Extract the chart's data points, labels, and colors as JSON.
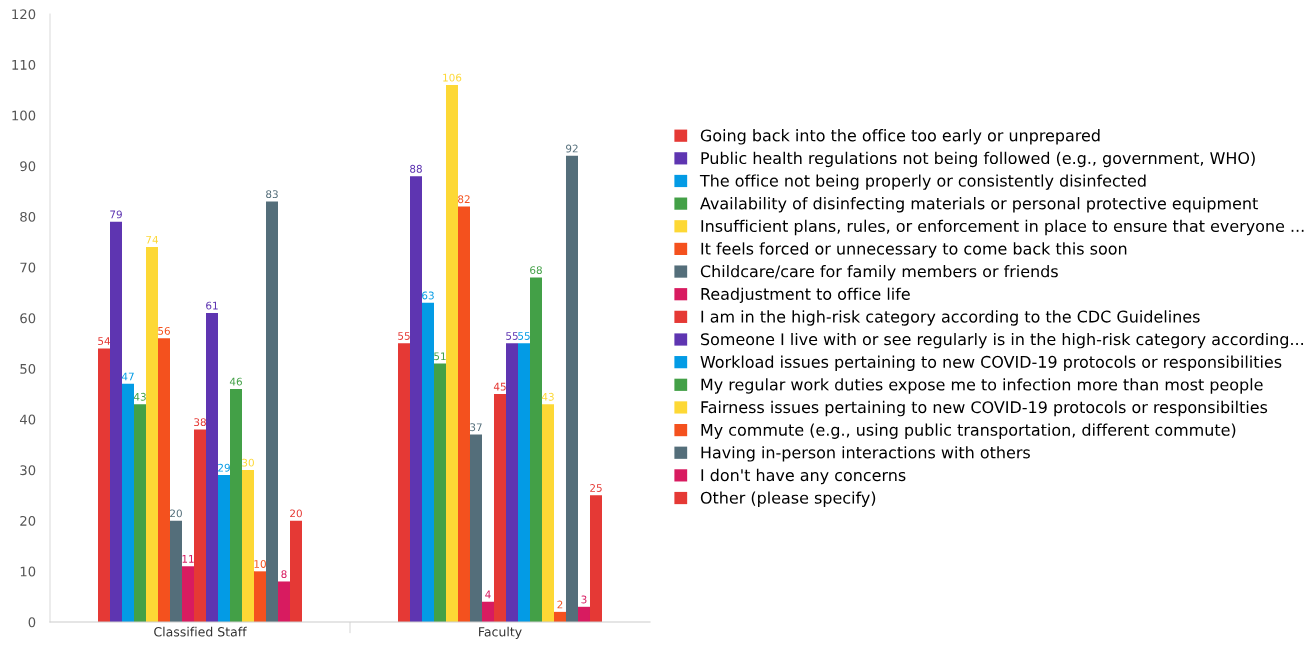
{
  "chart_data": {
    "type": "bar",
    "categories": [
      "Classified Staff",
      "Faculty"
    ],
    "ylim": [
      0,
      120
    ],
    "yticks": [
      0,
      10,
      20,
      30,
      40,
      50,
      60,
      70,
      80,
      90,
      100,
      110,
      120
    ],
    "grid": false,
    "legend": "right",
    "data_labels": true,
    "series": [
      {
        "name": "Going back into the office too early or unprepared",
        "color": "#e53935",
        "values": [
          54,
          55
        ]
      },
      {
        "name": "Public health regulations not being followed (e.g., government, WHO)",
        "color": "#5e35b1",
        "values": [
          79,
          88
        ]
      },
      {
        "name": "The office not being properly or consistently disinfected",
        "color": "#039be5",
        "values": [
          47,
          63
        ]
      },
      {
        "name": "Availability of disinfecting materials or personal protective equipment",
        "color": "#43a047",
        "values": [
          43,
          51
        ]
      },
      {
        "name": "Insufficient plans, rules, or enforcement in place to ensure that everyone ...",
        "color": "#fdd835",
        "values": [
          74,
          106
        ]
      },
      {
        "name": "It feels forced or unnecessary to come back this soon",
        "color": "#f4511e",
        "values": [
          56,
          82
        ]
      },
      {
        "name": "Childcare/care for family members or friends",
        "color": "#546e7a",
        "values": [
          20,
          37
        ]
      },
      {
        "name": "Readjustment to office life",
        "color": "#d81b60",
        "values": [
          11,
          4
        ]
      },
      {
        "name": "I am in the high-risk category according to the CDC Guidelines",
        "color": "#e53935",
        "values": [
          38,
          45
        ]
      },
      {
        "name": "Someone I live with or see regularly is in the high-risk category according...",
        "color": "#5e35b1",
        "values": [
          61,
          55
        ]
      },
      {
        "name": "Workload issues pertaining to new COVID-19 protocols or responsibilities",
        "color": "#039be5",
        "values": [
          29,
          55
        ]
      },
      {
        "name": "My regular work duties expose me to infection more than most people",
        "color": "#43a047",
        "values": [
          46,
          68
        ]
      },
      {
        "name": "Fairness issues pertaining to new COVID-19 protocols or responsibilties",
        "color": "#fdd835",
        "values": [
          30,
          43
        ]
      },
      {
        "name": "My commute (e.g., using public transportation, different commute)",
        "color": "#f4511e",
        "values": [
          10,
          2
        ]
      },
      {
        "name": "Having in-person interactions with others",
        "color": "#546e7a",
        "values": [
          83,
          92
        ]
      },
      {
        "name": "I don't have any concerns",
        "color": "#d81b60",
        "values": [
          8,
          3
        ]
      },
      {
        "name": "Other (please specify)",
        "color": "#e53935",
        "values": [
          20,
          25
        ]
      }
    ]
  }
}
